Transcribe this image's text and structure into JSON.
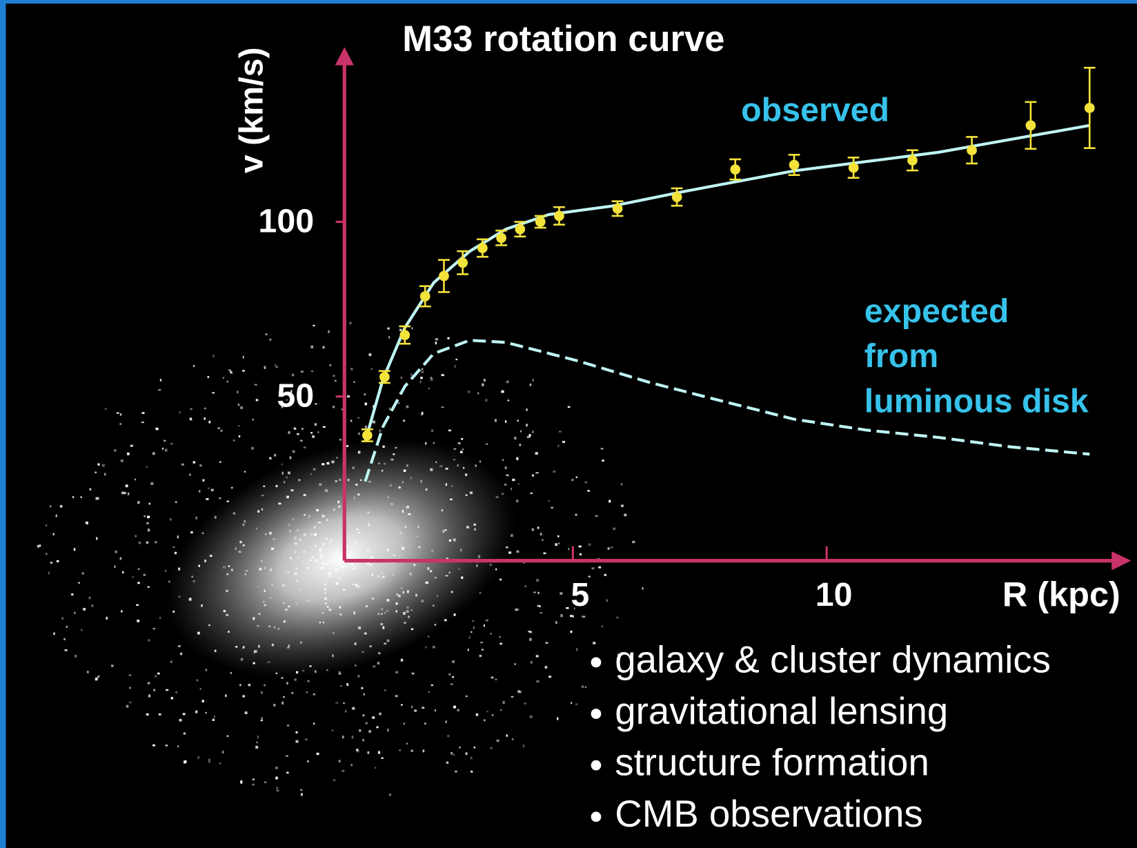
{
  "chart_data": {
    "type": "errorbar",
    "title": "M33 rotation curve",
    "x_label": "R (kpc)",
    "y_label": "v (km/s)",
    "xlim": [
      0.5,
      16
    ],
    "ylim": [
      3,
      150
    ],
    "xticks": [
      5,
      10
    ],
    "yticks": [
      50,
      100
    ],
    "axis_color": "#c8336a",
    "points": {
      "color": "#f3e23a",
      "x": [
        0.95,
        1.29,
        1.69,
        2.09,
        2.46,
        2.83,
        3.22,
        3.59,
        3.96,
        4.36,
        4.73,
        5.88,
        7.05,
        8.2,
        9.36,
        10.53,
        11.69,
        12.86,
        14.02,
        15.18
      ],
      "values": [
        38.9,
        55.6,
        67.6,
        78.7,
        84.5,
        88.3,
        92.5,
        95.4,
        97.9,
        100,
        101.7,
        103.8,
        107.1,
        115,
        116.3,
        115.5,
        117.6,
        120.5,
        127.6,
        132.6
      ],
      "errors": [
        1.7,
        1.7,
        2.5,
        2.9,
        4.6,
        3.3,
        2.5,
        2.1,
        2.1,
        1.7,
        2.5,
        2.1,
        2.5,
        2.9,
        2.9,
        2.9,
        2.9,
        3.8,
        6.7,
        11.5
      ]
    },
    "curves": [
      {
        "label": [
          "observed"
        ],
        "color": "#bff4f4",
        "dashed": false,
        "x": [
          0.91,
          1.26,
          1.69,
          2.26,
          2.97,
          3.68,
          4.53,
          5.81,
          7.23,
          9.36,
          12.2,
          15.18
        ],
        "values": [
          37.2,
          55.0,
          69.7,
          82.6,
          91.6,
          97.9,
          102.1,
          104.6,
          108.8,
          114.6,
          119.9,
          127.6
        ]
      },
      {
        "label": [
          "expected",
          "from",
          "luminous disk"
        ],
        "color": "#bff4f4",
        "dashed": true,
        "x": [
          0.91,
          1.26,
          1.69,
          2.26,
          2.97,
          3.68,
          5.1,
          6.52,
          7.94,
          9.36,
          10.78,
          12.2,
          13.62,
          15.18
        ],
        "values": [
          25.7,
          41.4,
          52.9,
          62.3,
          66.1,
          65.5,
          60.2,
          54.0,
          48.7,
          43.5,
          40.4,
          38.3,
          35.6,
          33.5
        ]
      }
    ],
    "label_color": "#36c2ea"
  },
  "bullets": [
    "galaxy & cluster dynamics",
    "gravitational lensing",
    "structure formation",
    "CMB observations"
  ]
}
